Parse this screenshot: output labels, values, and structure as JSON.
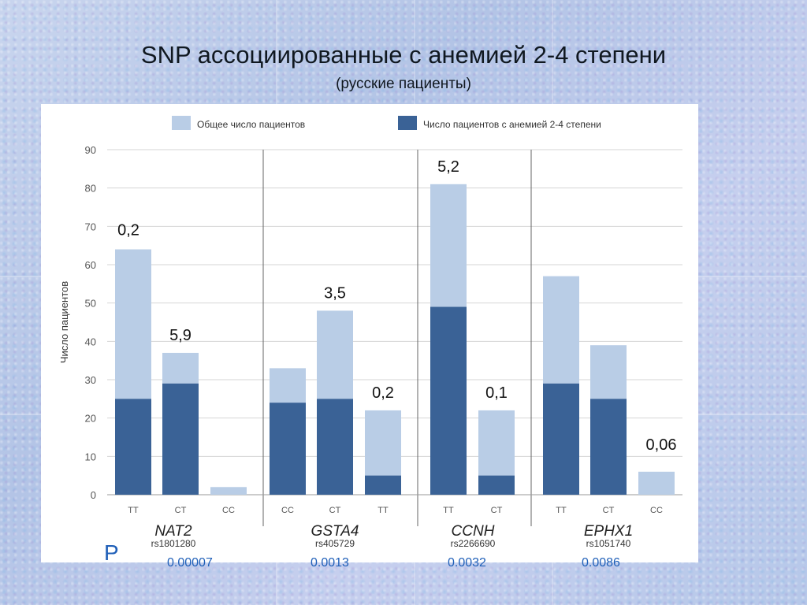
{
  "title": "SNP ассоциированные с анемией 2-4 степени",
  "subtitle": "(русские пациенты)",
  "p_label": "P",
  "p_values": [
    "0.00007",
    "0.0013",
    "0.0032",
    "0.0086"
  ],
  "colors": {
    "total": "#b9cde6",
    "anemia": "#3a6296",
    "axis_text": "#555555",
    "grid": "#d6d6d6",
    "separator": "#666666",
    "p_color": "#1f5fb8"
  },
  "chart_data": {
    "type": "bar",
    "stacked": "overlay",
    "ylabel": "Число пациентов",
    "ylim": [
      0,
      90
    ],
    "yticks": [
      0,
      10,
      20,
      30,
      40,
      50,
      60,
      70,
      80,
      90
    ],
    "grid": true,
    "legend_position": "top",
    "legend": [
      "Общее число пациентов",
      "Число пациентов с анемией 2-4 степени"
    ],
    "groups": [
      {
        "gene": "NAT2",
        "snp": "rs1801280",
        "genotypes": [
          "TT",
          "CT",
          "CC"
        ],
        "total": [
          64,
          37,
          2
        ],
        "anemia": [
          25,
          29,
          0
        ],
        "annotations": [
          "0,2",
          "5,9",
          ""
        ]
      },
      {
        "gene": "GSTA4",
        "snp": "rs405729",
        "genotypes": [
          "CC",
          "CT",
          "TT"
        ],
        "total": [
          33,
          48,
          22
        ],
        "anemia": [
          24,
          25,
          5
        ],
        "annotations": [
          "",
          "3,5",
          "0,2"
        ]
      },
      {
        "gene": "CCNH",
        "snp": "rs2266690",
        "genotypes": [
          "TT",
          "CT"
        ],
        "total": [
          81,
          22
        ],
        "anemia": [
          49,
          5
        ],
        "annotations": [
          "5,2",
          "0,1"
        ]
      },
      {
        "gene": "EPHX1",
        "snp": "rs1051740",
        "genotypes": [
          "TT",
          "CT",
          "CC"
        ],
        "total": [
          57,
          39,
          6
        ],
        "anemia": [
          29,
          25,
          0
        ],
        "annotations": [
          "",
          "",
          "0,06"
        ]
      }
    ]
  }
}
